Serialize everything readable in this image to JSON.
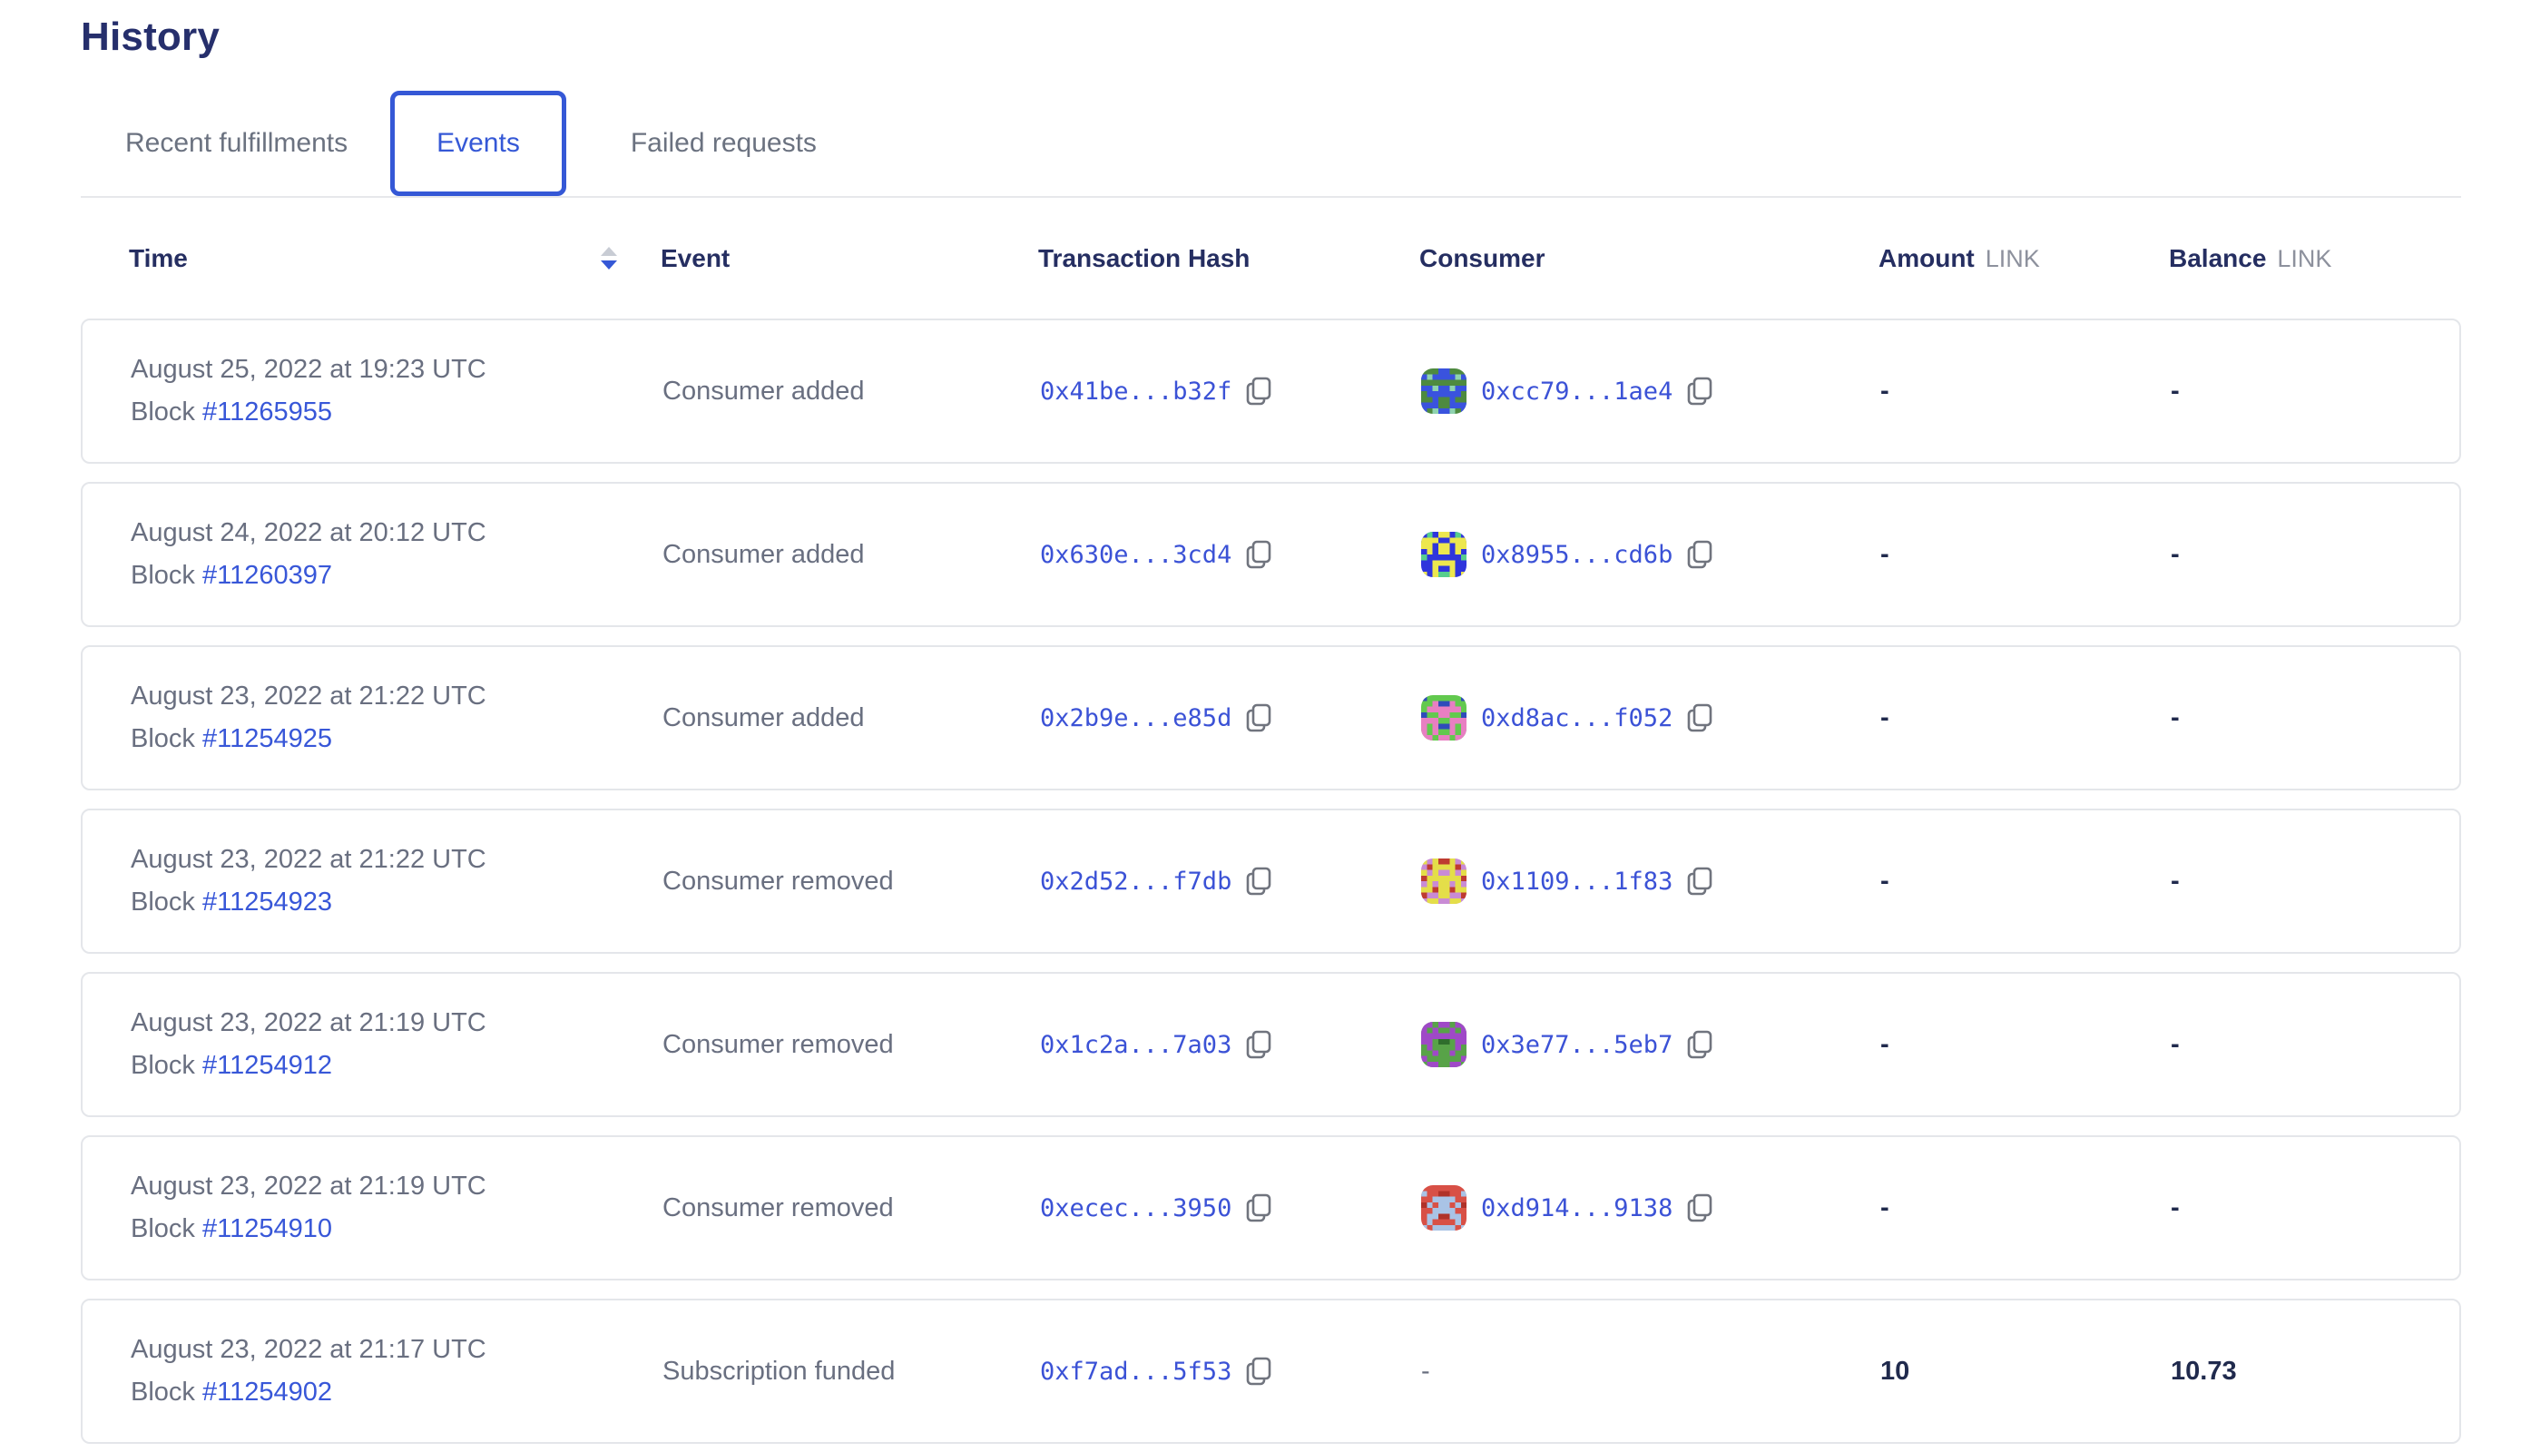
{
  "page": {
    "title": "History"
  },
  "tabs": [
    {
      "label": "Recent fulfillments",
      "active": false
    },
    {
      "label": "Events",
      "active": true
    },
    {
      "label": "Failed requests",
      "active": false
    }
  ],
  "colors": {
    "accent_blue": "#3558D6",
    "link_blue": "#3857D8",
    "heading_navy": "#262F6C",
    "body_gray": "#696F80",
    "unit_gray": "#8D919D",
    "value_navy": "#202A4D",
    "card_border": "#E4E6EA"
  },
  "table": {
    "columns": {
      "time": "Time",
      "event": "Event",
      "tx": "Transaction Hash",
      "consumer": "Consumer",
      "amount": "Amount",
      "balance": "Balance",
      "unit": "LINK"
    },
    "sort": {
      "column": "time",
      "direction": "desc"
    },
    "rows": [
      {
        "date": "August 25, 2022 at 19:23 UTC",
        "block_label": "Block",
        "block": "#11265955",
        "event": "Consumer added",
        "tx_hash": "0x41be...b32f",
        "consumer": {
          "address": "0xcc79...1ae4",
          "avatar_colors": [
            "#4E8A3F",
            "#3A53DE",
            "#8FD3AF"
          ]
        },
        "amount": "-",
        "balance": "-"
      },
      {
        "date": "August 24, 2022 at 20:12 UTC",
        "block_label": "Block",
        "block": "#11260397",
        "event": "Consumer added",
        "tx_hash": "0x630e...3cd4",
        "consumer": {
          "address": "0x8955...cd6b",
          "avatar_colors": [
            "#2F35DC",
            "#EDE74E",
            "#57CE8D"
          ]
        },
        "amount": "-",
        "balance": "-"
      },
      {
        "date": "August 23, 2022 at 21:22 UTC",
        "block_label": "Block",
        "block": "#11254925",
        "event": "Consumer added",
        "tx_hash": "0x2b9e...e85d",
        "consumer": {
          "address": "0xd8ac...f052",
          "avatar_colors": [
            "#62C94E",
            "#E87FC2",
            "#2F4BBA"
          ]
        },
        "amount": "-",
        "balance": "-"
      },
      {
        "date": "August 23, 2022 at 21:22 UTC",
        "block_label": "Block",
        "block": "#11254923",
        "event": "Consumer removed",
        "tx_hash": "0x2d52...f7db",
        "consumer": {
          "address": "0x1109...1f83",
          "avatar_colors": [
            "#C98BD5",
            "#E4DE49",
            "#BE3B31"
          ]
        },
        "amount": "-",
        "balance": "-"
      },
      {
        "date": "August 23, 2022 at 21:19 UTC",
        "block_label": "Block",
        "block": "#11254912",
        "event": "Consumer removed",
        "tx_hash": "0x1c2a...7a03",
        "consumer": {
          "address": "0x3e77...5eb7",
          "avatar_colors": [
            "#58A348",
            "#9F49C7",
            "#2F6E2C"
          ]
        },
        "amount": "-",
        "balance": "-"
      },
      {
        "date": "August 23, 2022 at 21:19 UTC",
        "block_label": "Block",
        "block": "#11254910",
        "event": "Consumer removed",
        "tx_hash": "0xecec...3950",
        "consumer": {
          "address": "0xd914...9138",
          "avatar_colors": [
            "#D85046",
            "#A9C3E6",
            "#B03229"
          ]
        },
        "amount": "-",
        "balance": "-"
      },
      {
        "date": "August 23, 2022 at 21:17 UTC",
        "block_label": "Block",
        "block": "#11254902",
        "event": "Subscription funded",
        "tx_hash": "0xf7ad...5f53",
        "consumer": {
          "address": "-"
        },
        "amount": "10",
        "balance": "10.73"
      }
    ]
  }
}
